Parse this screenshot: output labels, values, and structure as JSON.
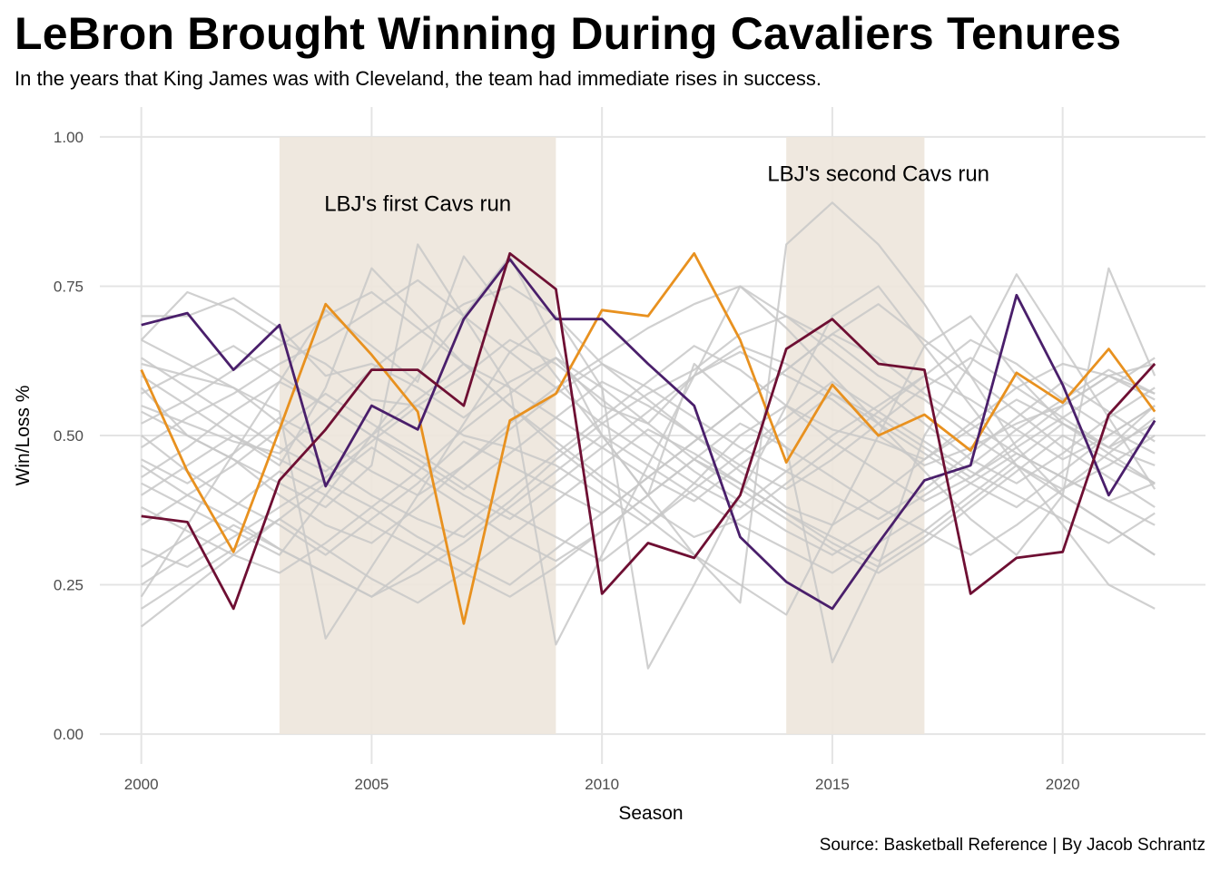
{
  "chart_data": {
    "type": "line",
    "title": "LeBron Brought Winning During Cavaliers Tenures",
    "subtitle": "In the years that King James was with Cleveland, the team had immediate rises in success.",
    "caption": "Source: Basketball Reference | By Jacob Schrantz",
    "xlabel": "Season",
    "ylabel": "Win/Loss %",
    "xlim": [
      1999.1,
      2023.1
    ],
    "ylim": [
      -0.05,
      1.05
    ],
    "x_ticks": [
      2000,
      2005,
      2010,
      2015,
      2020
    ],
    "y_ticks": [
      0.0,
      0.25,
      0.5,
      0.75,
      1.0
    ],
    "y_tick_labels": [
      "0.00",
      "0.25",
      "0.50",
      "0.75",
      "1.00"
    ],
    "grid": true,
    "x": [
      2000,
      2001,
      2002,
      2003,
      2004,
      2005,
      2006,
      2007,
      2008,
      2009,
      2010,
      2011,
      2012,
      2013,
      2014,
      2015,
      2016,
      2017,
      2018,
      2019,
      2020,
      2021,
      2022
    ],
    "highlight_periods": [
      {
        "start": 2003,
        "end": 2009,
        "label": "LBJ's first Cavs run",
        "label_x": 2006,
        "label_y": 0.89,
        "color": "#ede5dc"
      },
      {
        "start": 2014,
        "end": 2017,
        "label": "LBJ's second Cavs run",
        "label_x": 2016,
        "label_y": 0.94,
        "color": "#ede5dc"
      }
    ],
    "series": [
      {
        "color": "#e8911f",
        "values": [
          0.61,
          0.44,
          0.305,
          0.51,
          0.72,
          0.635,
          0.54,
          0.185,
          0.525,
          0.57,
          0.71,
          0.7,
          0.805,
          0.66,
          0.455,
          0.585,
          0.5,
          0.535,
          0.475,
          0.605,
          0.555,
          0.645,
          0.54
        ]
      },
      {
        "color": "#4a1f6b",
        "values": [
          0.685,
          0.705,
          0.61,
          0.685,
          0.415,
          0.55,
          0.51,
          0.695,
          0.795,
          0.695,
          0.695,
          0.62,
          0.55,
          0.33,
          0.255,
          0.21,
          0.32,
          0.425,
          0.45,
          0.735,
          0.585,
          0.4,
          0.525
        ]
      },
      {
        "color": "#6e0f33",
        "values": [
          0.365,
          0.355,
          0.21,
          0.425,
          0.51,
          0.61,
          0.61,
          0.55,
          0.805,
          0.745,
          0.235,
          0.32,
          0.295,
          0.4,
          0.645,
          0.695,
          0.62,
          0.61,
          0.235,
          0.295,
          0.305,
          0.535,
          0.62
        ]
      }
    ],
    "background_series_color": "#c8c8c8",
    "background_series": [
      [
        0.7,
        0.7,
        0.73,
        0.68,
        0.6,
        0.62,
        0.58,
        0.53,
        0.59,
        0.63,
        0.55,
        0.52,
        0.6,
        0.64,
        0.6,
        0.56,
        0.5,
        0.45,
        0.48,
        0.52,
        0.55,
        0.6,
        0.62
      ],
      [
        0.66,
        0.74,
        0.71,
        0.66,
        0.62,
        0.56,
        0.55,
        0.5,
        0.48,
        0.45,
        0.4,
        0.35,
        0.42,
        0.5,
        0.55,
        0.51,
        0.49,
        0.46,
        0.52,
        0.58,
        0.62,
        0.6,
        0.57
      ],
      [
        0.62,
        0.6,
        0.58,
        0.52,
        0.45,
        0.4,
        0.36,
        0.33,
        0.39,
        0.46,
        0.52,
        0.57,
        0.61,
        0.67,
        0.7,
        0.66,
        0.6,
        0.56,
        0.5,
        0.45,
        0.41,
        0.45,
        0.5
      ],
      [
        0.58,
        0.5,
        0.46,
        0.4,
        0.35,
        0.32,
        0.38,
        0.45,
        0.52,
        0.58,
        0.63,
        0.68,
        0.72,
        0.75,
        0.7,
        0.64,
        0.58,
        0.52,
        0.46,
        0.42,
        0.47,
        0.53,
        0.58
      ],
      [
        0.55,
        0.52,
        0.49,
        0.47,
        0.54,
        0.61,
        0.67,
        0.72,
        0.75,
        0.7,
        0.62,
        0.56,
        0.5,
        0.44,
        0.38,
        0.35,
        0.4,
        0.46,
        0.51,
        0.56,
        0.52,
        0.48,
        0.45
      ],
      [
        0.52,
        0.56,
        0.61,
        0.65,
        0.7,
        0.74,
        0.68,
        0.62,
        0.55,
        0.49,
        0.43,
        0.38,
        0.33,
        0.36,
        0.42,
        0.48,
        0.54,
        0.6,
        0.66,
        0.62,
        0.56,
        0.51,
        0.47
      ],
      [
        0.5,
        0.44,
        0.39,
        0.35,
        0.3,
        0.36,
        0.42,
        0.49,
        0.45,
        0.41,
        0.37,
        0.43,
        0.49,
        0.55,
        0.61,
        0.67,
        0.63,
        0.57,
        0.52,
        0.47,
        0.43,
        0.39,
        0.42
      ],
      [
        0.48,
        0.53,
        0.57,
        0.62,
        0.66,
        0.71,
        0.76,
        0.7,
        0.64,
        0.58,
        0.52,
        0.47,
        0.42,
        0.38,
        0.44,
        0.5,
        0.55,
        0.6,
        0.56,
        0.51,
        0.46,
        0.5,
        0.55
      ],
      [
        0.45,
        0.4,
        0.36,
        0.31,
        0.27,
        0.23,
        0.29,
        0.35,
        0.41,
        0.47,
        0.53,
        0.59,
        0.65,
        0.61,
        0.55,
        0.49,
        0.44,
        0.39,
        0.43,
        0.48,
        0.53,
        0.58,
        0.63
      ],
      [
        0.43,
        0.48,
        0.54,
        0.59,
        0.55,
        0.5,
        0.45,
        0.4,
        0.36,
        0.42,
        0.48,
        0.54,
        0.6,
        0.65,
        0.62,
        0.57,
        0.52,
        0.47,
        0.42,
        0.38,
        0.44,
        0.5,
        0.55
      ],
      [
        0.4,
        0.45,
        0.5,
        0.46,
        0.42,
        0.38,
        0.33,
        0.29,
        0.25,
        0.31,
        0.37,
        0.43,
        0.49,
        0.55,
        0.61,
        0.67,
        0.72,
        0.66,
        0.6,
        0.54,
        0.48,
        0.43,
        0.38
      ],
      [
        0.38,
        0.34,
        0.3,
        0.27,
        0.32,
        0.38,
        0.44,
        0.51,
        0.57,
        0.63,
        0.58,
        0.52,
        0.46,
        0.41,
        0.36,
        0.31,
        0.27,
        0.32,
        0.38,
        0.44,
        0.5,
        0.46,
        0.42
      ],
      [
        0.35,
        0.4,
        0.45,
        0.51,
        0.57,
        0.52,
        0.47,
        0.42,
        0.37,
        0.33,
        0.29,
        0.35,
        0.41,
        0.47,
        0.53,
        0.59,
        0.54,
        0.49,
        0.44,
        0.4,
        0.36,
        0.32,
        0.37
      ],
      [
        0.31,
        0.28,
        0.33,
        0.38,
        0.43,
        0.49,
        0.55,
        0.6,
        0.66,
        0.62,
        0.56,
        0.5,
        0.44,
        0.39,
        0.34,
        0.3,
        0.35,
        0.4,
        0.45,
        0.51,
        0.56,
        0.61,
        0.57
      ],
      [
        0.28,
        0.33,
        0.38,
        0.44,
        0.4,
        0.35,
        0.31,
        0.27,
        0.23,
        0.28,
        0.34,
        0.4,
        0.46,
        0.52,
        0.48,
        0.43,
        0.38,
        0.34,
        0.3,
        0.35,
        0.41,
        0.47,
        0.53
      ],
      [
        0.25,
        0.3,
        0.35,
        0.31,
        0.27,
        0.23,
        0.27,
        0.32,
        0.38,
        0.44,
        0.5,
        0.45,
        0.4,
        0.35,
        0.31,
        0.27,
        0.32,
        0.37,
        0.42,
        0.47,
        0.43,
        0.39,
        0.35
      ],
      [
        0.21,
        0.26,
        0.31,
        0.36,
        0.42,
        0.48,
        0.43,
        0.38,
        0.33,
        0.29,
        0.34,
        0.4,
        0.46,
        0.42,
        0.37,
        0.33,
        0.29,
        0.34,
        0.4,
        0.46,
        0.52,
        0.47,
        0.42
      ],
      [
        0.18,
        0.24,
        0.3,
        0.36,
        0.31,
        0.26,
        0.22,
        0.27,
        0.33,
        0.39,
        0.45,
        0.51,
        0.47,
        0.42,
        0.37,
        0.32,
        0.28,
        0.33,
        0.39,
        0.45,
        0.4,
        0.35,
        0.3
      ],
      [
        0.63,
        0.58,
        0.53,
        0.48,
        0.44,
        0.5,
        0.56,
        0.62,
        0.58,
        0.53,
        0.48,
        0.43,
        0.39,
        0.45,
        0.51,
        0.57,
        0.53,
        0.48,
        0.43,
        0.49,
        0.55,
        0.6,
        0.56
      ],
      [
        0.57,
        0.61,
        0.65,
        0.6,
        0.55,
        0.5,
        0.46,
        0.41,
        0.47,
        0.53,
        0.59,
        0.55,
        0.5,
        0.45,
        0.41,
        0.46,
        0.52,
        0.58,
        0.63,
        0.58,
        0.53,
        0.48,
        0.52
      ],
      [
        0.46,
        0.42,
        0.47,
        0.53,
        0.49,
        0.44,
        0.4,
        0.45,
        0.51,
        0.57,
        0.62,
        0.58,
        0.53,
        0.48,
        0.44,
        0.4,
        0.36,
        0.41,
        0.47,
        0.53,
        0.59,
        0.54,
        0.49
      ],
      [
        0.6,
        0.55,
        0.5,
        0.45,
        0.58,
        0.78,
        0.7,
        0.62,
        0.55,
        0.48,
        0.42,
        0.36,
        0.3,
        0.25,
        0.2,
        0.35,
        0.5,
        0.65,
        0.7,
        0.6,
        0.52,
        0.48,
        0.55
      ],
      [
        0.42,
        0.38,
        0.34,
        0.3,
        0.4,
        0.5,
        0.6,
        0.7,
        0.8,
        0.65,
        0.5,
        0.4,
        0.3,
        0.22,
        0.82,
        0.89,
        0.82,
        0.72,
        0.6,
        0.48,
        0.4,
        0.35,
        0.3
      ],
      [
        0.66,
        0.62,
        0.58,
        0.54,
        0.16,
        0.28,
        0.4,
        0.52,
        0.64,
        0.7,
        0.58,
        0.11,
        0.25,
        0.4,
        0.55,
        0.7,
        0.75,
        0.65,
        0.55,
        0.45,
        0.35,
        0.25,
        0.21
      ],
      [
        0.54,
        0.5,
        0.46,
        0.42,
        0.38,
        0.45,
        0.82,
        0.7,
        0.58,
        0.15,
        0.3,
        0.45,
        0.6,
        0.75,
        0.68,
        0.6,
        0.52,
        0.44,
        0.36,
        0.3,
        0.4,
        0.78,
        0.6
      ],
      [
        0.23,
        0.35,
        0.47,
        0.59,
        0.71,
        0.65,
        0.59,
        0.8,
        0.7,
        0.6,
        0.5,
        0.4,
        0.62,
        0.55,
        0.48,
        0.12,
        0.28,
        0.5,
        0.62,
        0.77,
        0.65,
        0.53,
        0.41
      ]
    ]
  }
}
